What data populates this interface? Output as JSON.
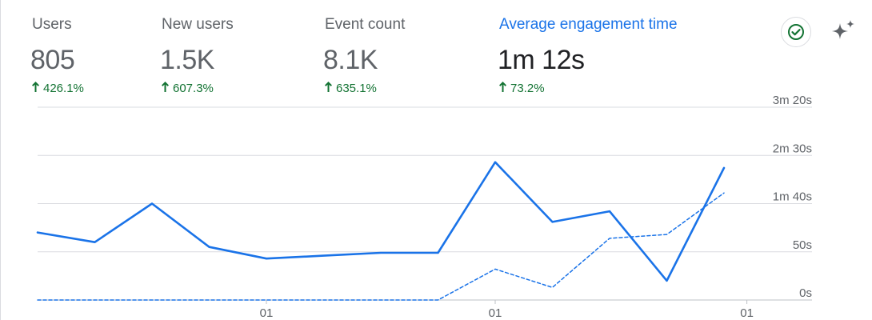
{
  "metrics": [
    {
      "label": "Users",
      "value": "805",
      "change": "426.1%",
      "direction": "up",
      "active": false
    },
    {
      "label": "New users",
      "value": "1.5K",
      "change": "607.3%",
      "direction": "up",
      "active": false
    },
    {
      "label": "Event count",
      "value": "8.1K",
      "change": "635.1%",
      "direction": "up",
      "active": false
    },
    {
      "label": "Average engagement time",
      "value": "1m 12s",
      "change": "73.2%",
      "direction": "up",
      "active": true
    }
  ],
  "toolbar": {
    "check_icon": "check-circle-icon",
    "sparkle_icon": "sparkle-icon"
  },
  "colors": {
    "accent": "#1a73e8",
    "positive": "#137333",
    "grid": "#dadce0"
  },
  "chart_data": {
    "type": "line",
    "y_unit": "seconds",
    "ylim": [
      0,
      200
    ],
    "y_ticks": [
      {
        "value": 200,
        "label": "3m 20s"
      },
      {
        "value": 150,
        "label": "2m 30s"
      },
      {
        "value": 100,
        "label": "1m 40s"
      },
      {
        "value": 50,
        "label": "50s"
      },
      {
        "value": 0,
        "label": "0s"
      }
    ],
    "x_tick_labels": [
      {
        "index": 4,
        "label": "01"
      },
      {
        "index": 8,
        "label": "01"
      },
      {
        "index": 12.4,
        "label": "01"
      }
    ],
    "series": [
      {
        "style": "solid",
        "values": [
          70,
          60,
          100,
          55,
          43,
          46,
          49,
          49,
          143,
          81,
          92,
          20,
          137
        ]
      },
      {
        "style": "dashed",
        "values": [
          0,
          0,
          0,
          0,
          0,
          0,
          0,
          0,
          32,
          13,
          64,
          68,
          111
        ]
      }
    ],
    "grid": true
  }
}
